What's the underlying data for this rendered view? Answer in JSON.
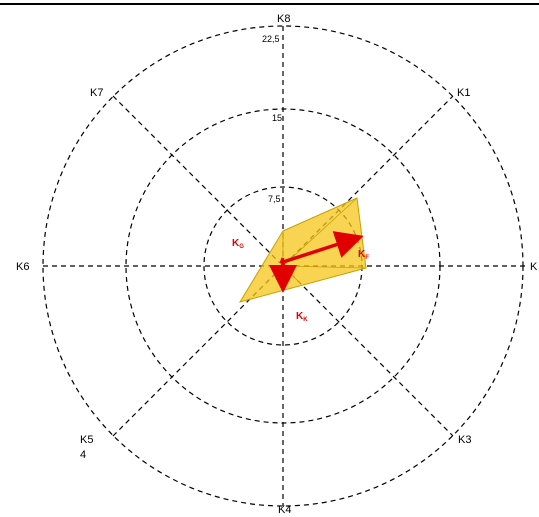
{
  "rings": [
    "7,5",
    "15",
    "22,5"
  ],
  "axes": {
    "K1": "K1",
    "K3": "K3",
    "K4": "K4",
    "K5": "K5",
    "K5_extra": "4",
    "K6": "K6",
    "K7": "K7",
    "K8": "K8"
  },
  "vectors": {
    "G": {
      "main": "K",
      "sub": "G"
    },
    "F": {
      "main": "K",
      "sub": "F"
    },
    "K": {
      "main": "K",
      "sub": "K"
    }
  },
  "colors": {
    "polygon_fill": "#f5c518",
    "polygon_stroke": "#c8a000",
    "vector": "#e00000",
    "grid": "#000000"
  }
}
